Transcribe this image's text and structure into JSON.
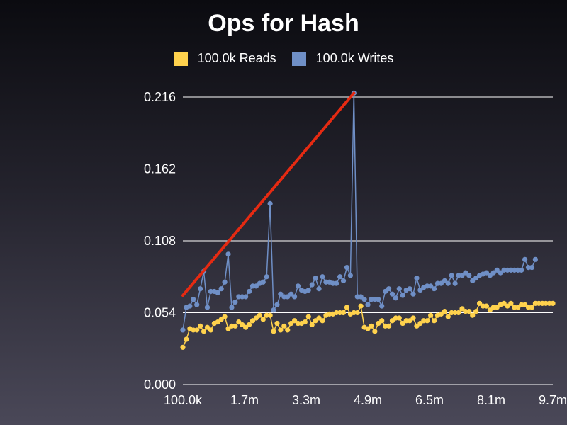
{
  "chart_data": {
    "type": "line",
    "title": "Ops for Hash",
    "legend_position": "top-center",
    "grid": "horizontal",
    "ylim": [
      0,
      0.216
    ],
    "y_ticks": [
      "0.000",
      "0.054",
      "0.108",
      "0.162",
      "0.216"
    ],
    "x_ticks": [
      "100.0k",
      "1.7m",
      "3.3m",
      "4.9m",
      "6.5m",
      "8.1m",
      "9.7m"
    ],
    "colors": {
      "reads": "#ffd24d",
      "writes": "#6f8fc6",
      "trend": "#e52a12",
      "grid": "#ffffff"
    },
    "series": [
      {
        "name": "100.0k Reads",
        "values": [
          0.028,
          0.034,
          0.042,
          0.041,
          0.041,
          0.044,
          0.04,
          0.043,
          0.041,
          0.046,
          0.047,
          0.049,
          0.051,
          0.042,
          0.044,
          0.044,
          0.047,
          0.045,
          0.043,
          0.045,
          0.048,
          0.05,
          0.052,
          0.049,
          0.052,
          0.052,
          0.04,
          0.046,
          0.041,
          0.044,
          0.041,
          0.046,
          0.048,
          0.046,
          0.046,
          0.047,
          0.051,
          0.045,
          0.048,
          0.05,
          0.048,
          0.052,
          0.053,
          0.053,
          0.054,
          0.054,
          0.054,
          0.058,
          0.053,
          0.054,
          0.054,
          0.059,
          0.043,
          0.042,
          0.044,
          0.04,
          0.046,
          0.048,
          0.044,
          0.044,
          0.048,
          0.05,
          0.05,
          0.046,
          0.048,
          0.048,
          0.05,
          0.044,
          0.046,
          0.048,
          0.048,
          0.052,
          0.048,
          0.052,
          0.053,
          0.055,
          0.051,
          0.054,
          0.054,
          0.054,
          0.057,
          0.055,
          0.055,
          0.052,
          0.055,
          0.061,
          0.059,
          0.059,
          0.056,
          0.058,
          0.058,
          0.06,
          0.061,
          0.059,
          0.061,
          0.058,
          0.058,
          0.06,
          0.06,
          0.058,
          0.058,
          0.061,
          0.061,
          0.061,
          0.061,
          0.061,
          0.061
        ]
      },
      {
        "name": "100.0k Writes",
        "values": [
          0.041,
          0.058,
          0.059,
          0.064,
          0.06,
          0.072,
          0.085,
          0.058,
          0.07,
          0.07,
          0.069,
          0.072,
          0.077,
          0.098,
          0.058,
          0.062,
          0.066,
          0.066,
          0.066,
          0.07,
          0.074,
          0.074,
          0.076,
          0.077,
          0.081,
          0.136,
          0.056,
          0.06,
          0.068,
          0.066,
          0.066,
          0.068,
          0.066,
          0.074,
          0.071,
          0.07,
          0.071,
          0.075,
          0.08,
          0.072,
          0.081,
          0.077,
          0.077,
          0.076,
          0.076,
          0.081,
          0.078,
          0.088,
          0.082,
          0.219,
          0.066,
          0.066,
          0.064,
          0.06,
          0.064,
          0.064,
          0.064,
          0.059,
          0.07,
          0.072,
          0.068,
          0.065,
          0.072,
          0.067,
          0.071,
          0.072,
          0.068,
          0.08,
          0.071,
          0.073,
          0.074,
          0.074,
          0.072,
          0.076,
          0.076,
          0.078,
          0.076,
          0.082,
          0.076,
          0.082,
          0.082,
          0.084,
          0.082,
          0.078,
          0.08,
          0.082,
          0.083,
          0.084,
          0.082,
          0.084,
          0.086,
          0.084,
          0.086,
          0.086,
          0.086,
          0.086,
          0.086,
          0.086,
          0.094,
          0.088,
          0.088,
          0.094
        ]
      }
    ],
    "annotation": {
      "kind": "trend-line",
      "from": {
        "x_index": 0,
        "y": 0.067
      },
      "to": {
        "x_index": 49,
        "y": 0.219
      }
    }
  }
}
